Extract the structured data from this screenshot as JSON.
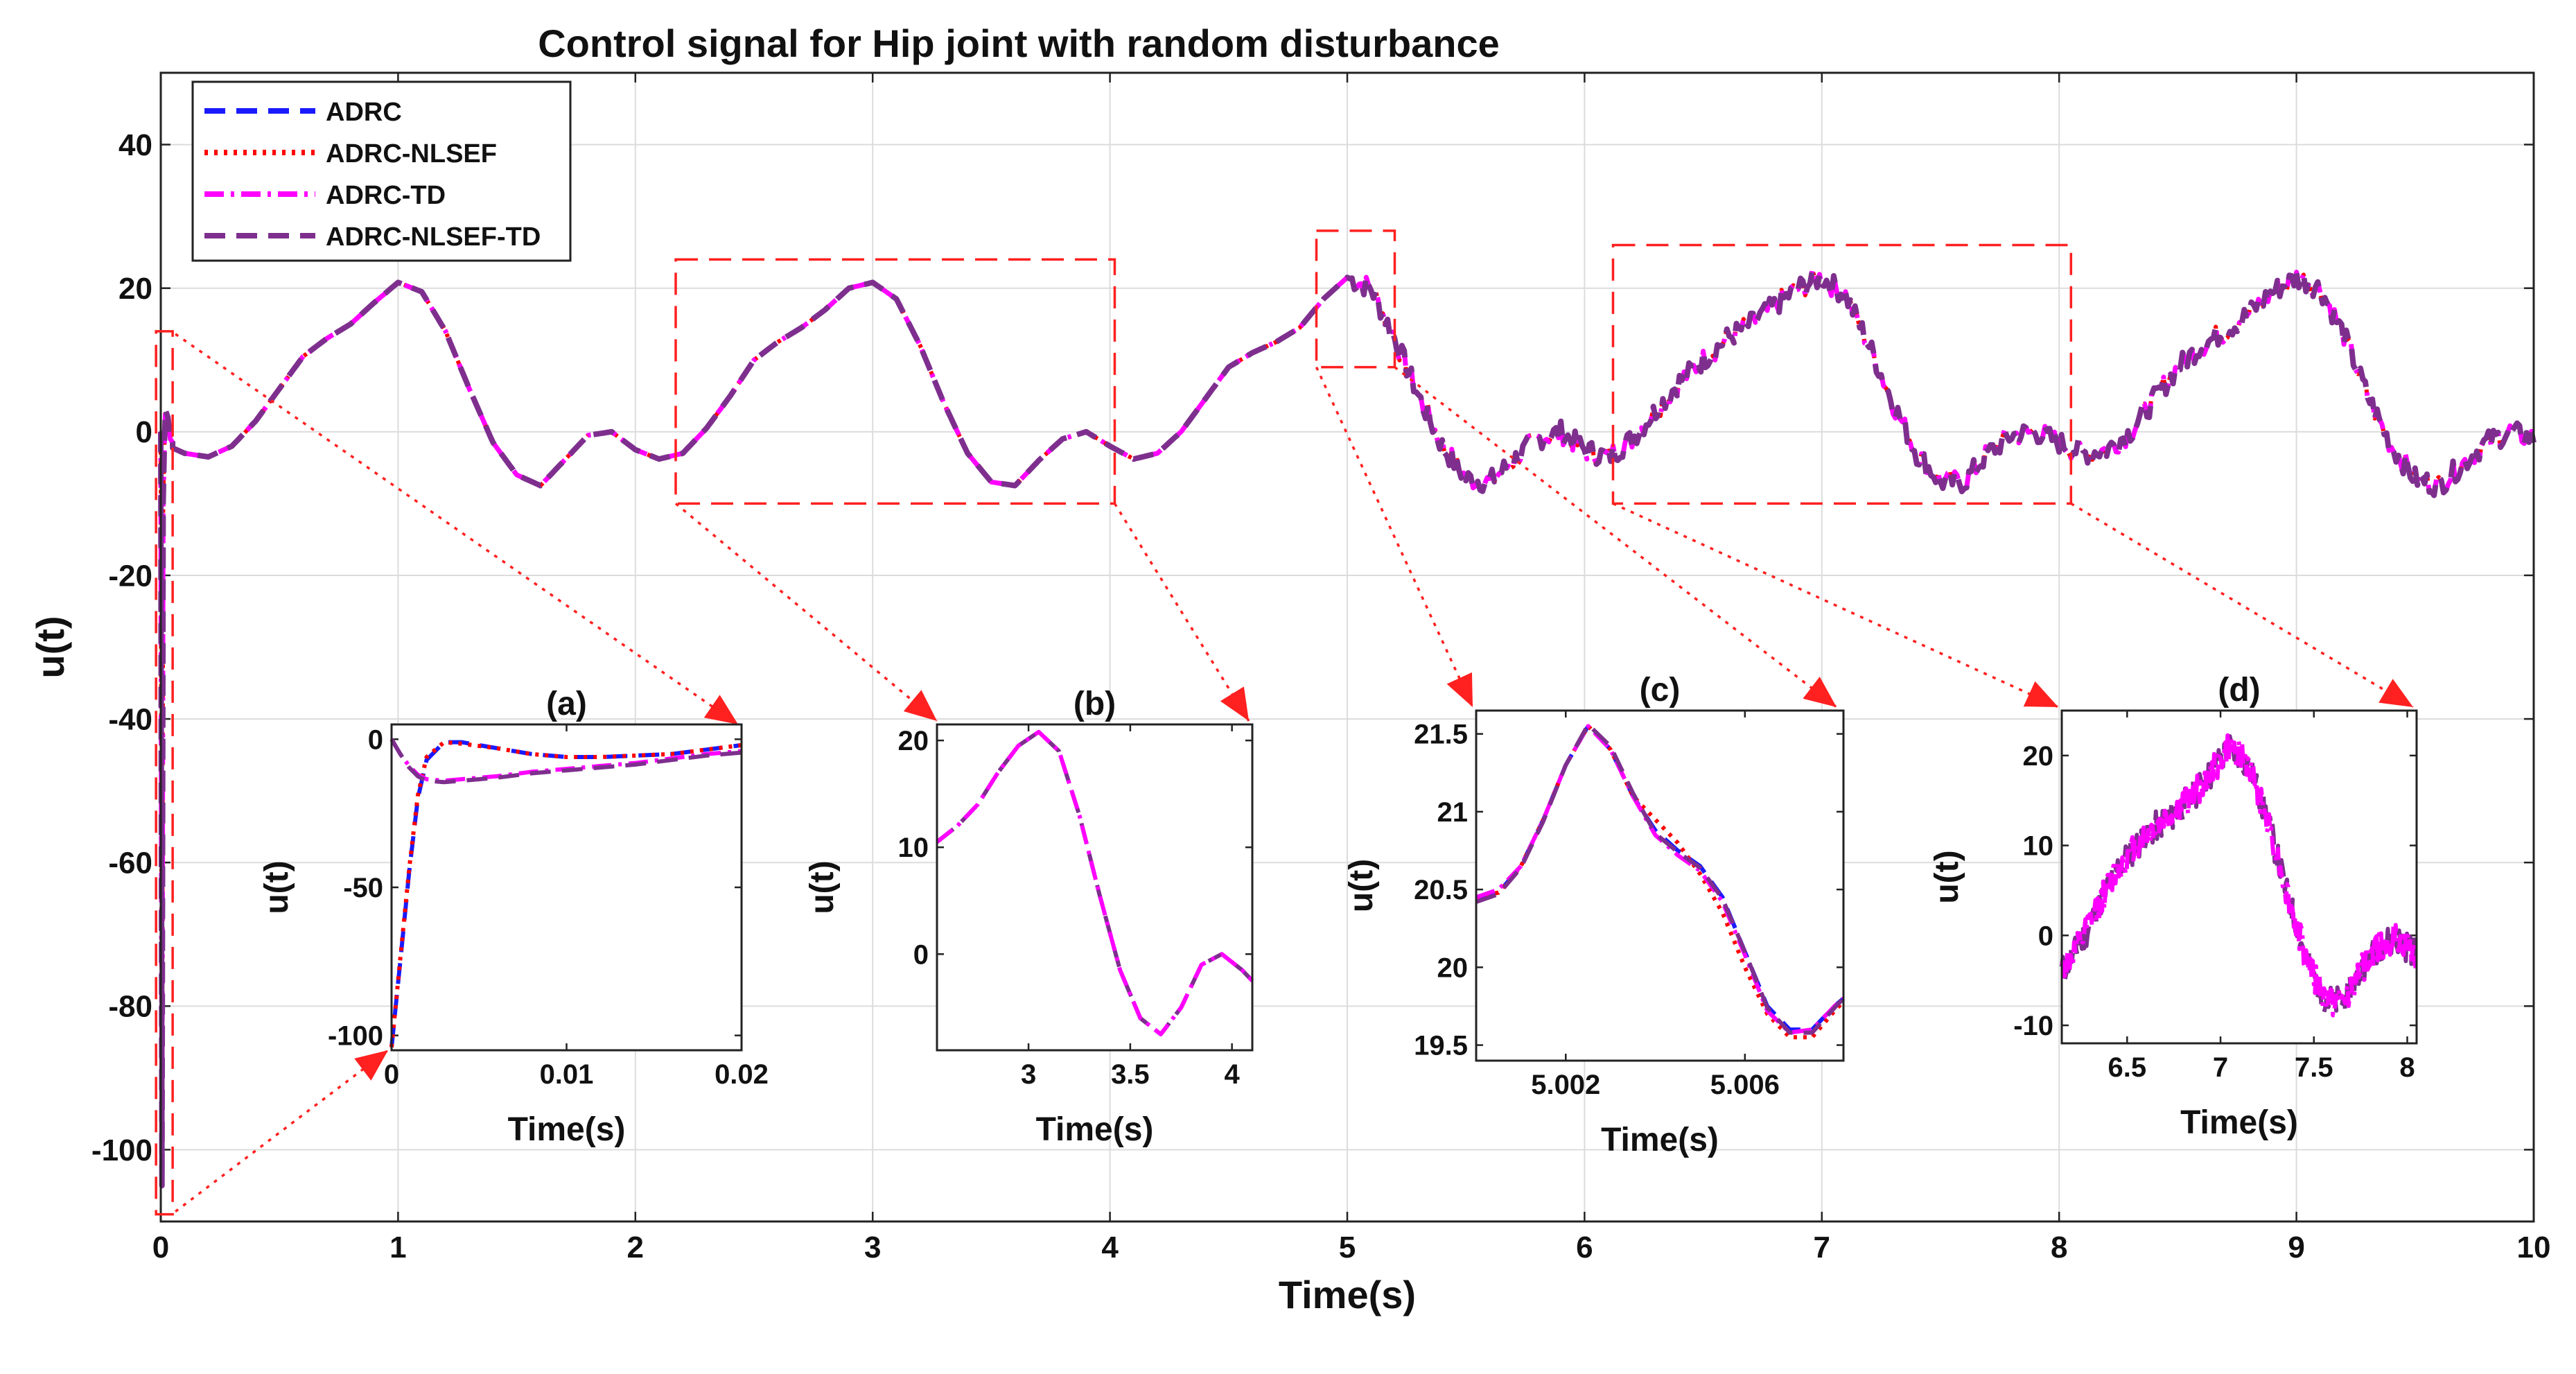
{
  "figure": {
    "title": "Control signal for Hip joint with random disturbance"
  },
  "chart_data": [
    {
      "id": "main",
      "type": "line",
      "title": "Control signal for Hip joint with random disturbance",
      "xlabel": "Time(s)",
      "ylabel": "u(t)",
      "xlim": [
        0,
        10
      ],
      "ylim": [
        -110,
        50
      ],
      "xticks": [
        0,
        1,
        2,
        3,
        4,
        5,
        6,
        7,
        8,
        9,
        10
      ],
      "xtick_labels": [
        "0",
        "1",
        "2",
        "3",
        "4",
        "5",
        "6",
        "7",
        "8",
        "9",
        "10"
      ],
      "yticks": [
        -100,
        -80,
        -60,
        -40,
        -20,
        0,
        20,
        40
      ],
      "ytick_labels": [
        "-100",
        "-80",
        "-60",
        "-40",
        "-20",
        "0",
        "20",
        "40"
      ],
      "grid": true,
      "legend_position": "top-left",
      "series": [
        {
          "name": "ADRC",
          "color": "#1a1aff",
          "dash": "dashed"
        },
        {
          "name": "ADRC-NLSEF",
          "color": "#ff0000",
          "dash": "dotted"
        },
        {
          "name": "ADRC-TD",
          "color": "#ff00ff",
          "dash": "dash-dot"
        },
        {
          "name": "ADRC-NLSEF-TD",
          "color": "#7e2f8e",
          "dash": "dashed"
        }
      ],
      "trace": {
        "x": [
          0,
          0.1,
          0.2,
          0.3,
          0.4,
          0.5,
          0.6,
          0.7,
          0.8,
          0.9,
          1.0,
          1.1,
          1.2,
          1.3,
          1.4,
          1.5,
          1.6,
          1.7,
          1.8,
          1.9,
          2.0,
          2.1,
          2.2,
          2.3,
          2.4,
          2.5,
          2.6,
          2.7,
          2.8,
          2.9,
          3.0,
          3.1,
          3.2,
          3.3,
          3.4,
          3.5,
          3.6,
          3.7,
          3.8,
          3.9,
          4.0,
          4.1,
          4.2,
          4.3,
          4.4,
          4.5,
          4.6,
          4.7,
          4.8,
          4.9,
          5.0,
          5.1,
          5.2,
          5.3,
          5.4,
          5.5,
          5.6,
          5.7,
          5.8,
          5.9,
          6.0,
          6.1,
          6.2,
          6.3,
          6.4,
          6.5,
          6.6,
          6.7,
          6.8,
          6.9,
          7.0,
          7.1,
          7.2,
          7.3,
          7.4,
          7.5,
          7.6,
          7.7,
          7.8,
          7.9,
          8.0,
          8.1,
          8.2,
          8.3,
          8.4,
          8.5,
          8.6,
          8.7,
          8.8,
          8.9,
          9.0,
          9.1,
          9.2,
          9.3,
          9.4,
          9.5,
          9.6,
          9.7,
          9.8,
          9.9,
          10.0
        ],
        "y": [
          -1.5,
          -3.0,
          -3.5,
          -2.0,
          1.5,
          6.0,
          10.5,
          13.0,
          15.0,
          18.0,
          20.8,
          19.5,
          14.0,
          6.0,
          -1.5,
          -6.0,
          -7.5,
          -4.0,
          -0.5,
          0.0,
          -2.5,
          -3.8,
          -3.0,
          0.5,
          5.0,
          10.0,
          12.5,
          14.5,
          17.0,
          20.0,
          20.8,
          18.5,
          12.0,
          4.0,
          -3.0,
          -7.0,
          -7.5,
          -4.0,
          -1.0,
          0.0,
          -2.0,
          -3.8,
          -3.0,
          0.0,
          4.5,
          9.0,
          11.0,
          12.5,
          14.5,
          18.5,
          21.5,
          20.0,
          13.0,
          5.0,
          -2.0,
          -6.5,
          -7.0,
          -4.0,
          -1.0,
          0.0,
          -2.5,
          -3.5,
          -1.0,
          3.0,
          7.0,
          10.0,
          13.0,
          15.0,
          17.5,
          20.0,
          21.5,
          19.0,
          12.0,
          4.0,
          -3.0,
          -7.0,
          -7.0,
          -3.0,
          -0.5,
          0.0,
          -1.5,
          -3.0,
          -2.5,
          0.0,
          4.5,
          9.0,
          12.0,
          14.0,
          16.5,
          19.5,
          21.5,
          20.0,
          13.5,
          5.0,
          -2.0,
          -6.5,
          -7.5,
          -4.5,
          -1.5,
          0.0,
          -1.0
        ]
      },
      "spike": {
        "x": [
          0,
          0.005,
          0.01,
          0.015,
          0.02,
          0.03,
          0.04,
          0.05
        ],
        "y": [
          0,
          -105,
          -10,
          -2,
          3,
          2,
          -1,
          -1.5
        ]
      }
    },
    {
      "id": "inset-a",
      "type": "line",
      "title": "(a)",
      "xlabel": "Time(s)",
      "ylabel": "u(t)",
      "xlim": [
        0,
        0.02
      ],
      "ylim": [
        -105,
        5
      ],
      "xticks": [
        0,
        0.01,
        0.02
      ],
      "xtick_labels": [
        "0",
        "0.01",
        "0.02"
      ],
      "yticks": [
        -100,
        -50,
        0
      ],
      "ytick_labels": [
        "-100",
        "-50",
        "0"
      ],
      "lines": [
        {
          "series": "ADRC",
          "x": [
            0,
            0.0005,
            0.001,
            0.0015,
            0.002,
            0.003,
            0.004,
            0.006,
            0.008,
            0.01,
            0.012,
            0.014,
            0.016,
            0.018,
            0.02
          ],
          "y": [
            -104,
            -75,
            -45,
            -20,
            -7,
            -1,
            -1,
            -3,
            -5,
            -6,
            -6,
            -5.5,
            -5,
            -3.5,
            -2
          ]
        },
        {
          "series": "ADRC-NLSEF",
          "x": [
            0,
            0.0005,
            0.001,
            0.0015,
            0.002,
            0.003,
            0.004,
            0.006,
            0.008,
            0.01,
            0.012,
            0.014,
            0.016,
            0.018,
            0.02
          ],
          "y": [
            -104,
            -74,
            -44,
            -19,
            -6,
            -1,
            -1.5,
            -3,
            -5,
            -6,
            -6,
            -5.5,
            -5,
            -3.5,
            -2
          ]
        },
        {
          "series": "ADRC-TD",
          "x": [
            0,
            0.0005,
            0.001,
            0.0015,
            0.002,
            0.003,
            0.004,
            0.006,
            0.008,
            0.01,
            0.012,
            0.014,
            0.016,
            0.018,
            0.02
          ],
          "y": [
            0,
            -5,
            -9,
            -12,
            -13.5,
            -14,
            -13.5,
            -12.5,
            -11,
            -10,
            -9,
            -8,
            -6.5,
            -5,
            -4
          ]
        },
        {
          "series": "ADRC-NLSEF-TD",
          "x": [
            0,
            0.0005,
            0.001,
            0.0015,
            0.002,
            0.003,
            0.004,
            0.006,
            0.008,
            0.01,
            0.012,
            0.014,
            0.016,
            0.018,
            0.02
          ],
          "y": [
            0,
            -5,
            -9.5,
            -12.5,
            -14,
            -14.5,
            -14,
            -13,
            -11.5,
            -10.5,
            -9.5,
            -8.5,
            -7,
            -5.5,
            -4.5
          ]
        }
      ]
    },
    {
      "id": "inset-b",
      "type": "line",
      "title": "(b)",
      "xlabel": "Time(s)",
      "ylabel": "u(t)",
      "xlim": [
        2.55,
        4.1
      ],
      "ylim": [
        -9,
        21.5
      ],
      "xticks": [
        3,
        3.5,
        4
      ],
      "xtick_labels": [
        "3",
        "3.5",
        "4"
      ],
      "yticks": [
        0,
        10,
        20
      ],
      "ytick_labels": [
        "0",
        "10",
        "20"
      ],
      "lines": [
        {
          "series": "ADRC-NLSEF-TD",
          "x": [
            2.55,
            2.65,
            2.75,
            2.85,
            2.95,
            3.05,
            3.15,
            3.25,
            3.35,
            3.45,
            3.55,
            3.65,
            3.75,
            3.85,
            3.95,
            4.05,
            4.1
          ],
          "y": [
            10.5,
            12,
            14,
            17,
            19.5,
            20.8,
            19,
            13,
            5.5,
            -1.5,
            -6,
            -7.5,
            -5,
            -1,
            0,
            -1.5,
            -2.5
          ]
        },
        {
          "series": "ADRC-TD",
          "x": [
            2.55,
            2.65,
            2.75,
            2.85,
            2.95,
            3.05,
            3.15,
            3.25,
            3.35,
            3.45,
            3.55,
            3.65,
            3.75,
            3.85,
            3.95,
            4.05,
            4.1
          ],
          "y": [
            10.5,
            12,
            14,
            17,
            19.5,
            20.8,
            19,
            13,
            5.5,
            -1.5,
            -6,
            -7.5,
            -5,
            -1,
            0,
            -1.5,
            -2.5
          ]
        }
      ]
    },
    {
      "id": "inset-c",
      "type": "line",
      "title": "(c)",
      "xlabel": "Time(s)",
      "ylabel": "u(t)",
      "xlim": [
        5.0,
        5.0082
      ],
      "ylim": [
        19.4,
        21.65
      ],
      "xticks": [
        5.002,
        5.006
      ],
      "xtick_labels": [
        "5.002",
        "5.006"
      ],
      "yticks": [
        19.5,
        20,
        20.5,
        21,
        21.5
      ],
      "ytick_labels": [
        "19.5",
        "20",
        "20.5",
        "21",
        "21.5"
      ],
      "lines": [
        {
          "series": "ADRC",
          "x": [
            5.0,
            5.0005,
            5.001,
            5.0015,
            5.002,
            5.0025,
            5.003,
            5.0035,
            5.004,
            5.0045,
            5.005,
            5.0055,
            5.006,
            5.0065,
            5.007,
            5.0075,
            5.008,
            5.0082
          ],
          "y": [
            20.45,
            20.48,
            20.65,
            20.95,
            21.3,
            21.55,
            21.4,
            21.1,
            20.88,
            20.75,
            20.65,
            20.45,
            20.1,
            19.75,
            19.6,
            19.6,
            19.75,
            19.8
          ]
        },
        {
          "series": "ADRC-NLSEF",
          "x": [
            5.0,
            5.0005,
            5.001,
            5.0015,
            5.002,
            5.0025,
            5.003,
            5.0035,
            5.004,
            5.0045,
            5.005,
            5.0055,
            5.006,
            5.0065,
            5.007,
            5.0075,
            5.008,
            5.0082
          ],
          "y": [
            20.45,
            20.48,
            20.65,
            20.95,
            21.3,
            21.55,
            21.4,
            21.1,
            20.95,
            20.8,
            20.6,
            20.35,
            20.0,
            19.7,
            19.55,
            19.55,
            19.72,
            19.78
          ]
        },
        {
          "series": "ADRC-TD",
          "x": [
            5.0,
            5.0005,
            5.001,
            5.0015,
            5.002,
            5.0025,
            5.003,
            5.0035,
            5.004,
            5.0045,
            5.005,
            5.0055,
            5.006,
            5.0065,
            5.007,
            5.0075,
            5.008,
            5.0082
          ],
          "y": [
            20.45,
            20.5,
            20.65,
            20.95,
            21.3,
            21.55,
            21.4,
            21.1,
            20.85,
            20.72,
            20.62,
            20.42,
            20.08,
            19.72,
            19.58,
            19.6,
            19.75,
            19.8
          ]
        },
        {
          "series": "ADRC-NLSEF-TD",
          "x": [
            5.0,
            5.0005,
            5.001,
            5.0015,
            5.002,
            5.0025,
            5.003,
            5.0035,
            5.004,
            5.0045,
            5.005,
            5.0055,
            5.006,
            5.0065,
            5.007,
            5.0075,
            5.008,
            5.0082
          ],
          "y": [
            20.42,
            20.47,
            20.64,
            20.94,
            21.3,
            21.56,
            21.42,
            21.12,
            20.86,
            20.74,
            20.64,
            20.44,
            20.1,
            19.74,
            19.58,
            19.58,
            19.74,
            19.8
          ]
        }
      ]
    },
    {
      "id": "inset-d",
      "type": "line",
      "title": "(d)",
      "xlabel": "Time(s)",
      "ylabel": "u(t)",
      "xlim": [
        6.15,
        8.05
      ],
      "ylim": [
        -12,
        25
      ],
      "xticks": [
        6.5,
        7,
        7.5,
        8
      ],
      "xtick_labels": [
        "6.5",
        "7",
        "7.5",
        "8"
      ],
      "yticks": [
        -10,
        0,
        10,
        20
      ],
      "ytick_labels": [
        "-10",
        "0",
        "10",
        "20"
      ],
      "lines": [
        {
          "series": "ADRC-NLSEF-TD",
          "x": [
            6.15,
            6.25,
            6.35,
            6.45,
            6.55,
            6.65,
            6.75,
            6.85,
            6.95,
            7.05,
            7.15,
            7.25,
            7.35,
            7.45,
            7.55,
            7.65,
            7.75,
            7.85,
            7.95,
            8.05
          ],
          "y": [
            -4,
            -1,
            3.5,
            7.5,
            10,
            12,
            13.5,
            15.5,
            18,
            21,
            19,
            13,
            5,
            -2,
            -7,
            -7.5,
            -4,
            -1,
            -0.5,
            -2
          ]
        },
        {
          "series": "ADRC-TD",
          "x": [
            6.15,
            6.25,
            6.35,
            6.45,
            6.55,
            6.65,
            6.75,
            6.85,
            6.95,
            7.05,
            7.15,
            7.25,
            7.35,
            7.45,
            7.55,
            7.65,
            7.75,
            7.85,
            7.95,
            8.05
          ],
          "y": [
            -4,
            -1,
            3.5,
            7.5,
            10,
            12,
            13.5,
            15.5,
            18,
            21,
            19,
            13,
            5,
            -2,
            -7,
            -7.5,
            -4,
            -1,
            -0.5,
            -2
          ]
        }
      ]
    }
  ]
}
